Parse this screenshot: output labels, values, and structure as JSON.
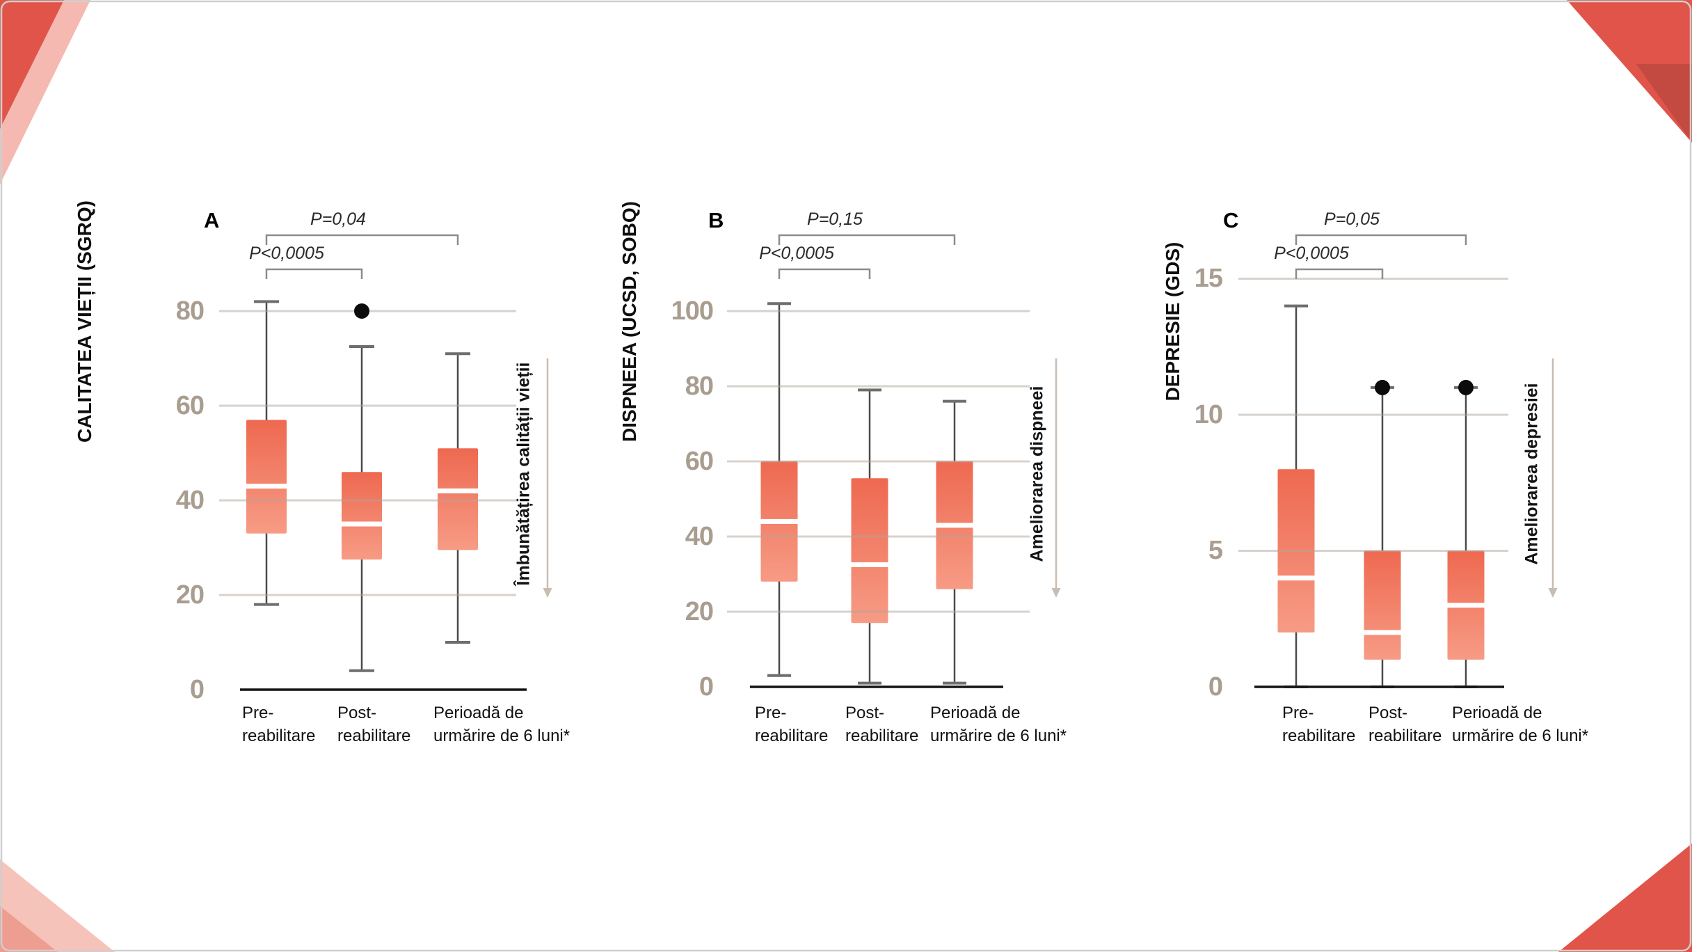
{
  "figure": {
    "language": "Romanian",
    "description_visible_text_only": true
  },
  "colors": {
    "box_fill_top": "#ee6950",
    "box_fill_bottom": "#f79b85",
    "median_line": "#ffffff",
    "whisker": "#4a4a4a",
    "whisker_cap": "#6e6e6e",
    "gridline": "#b0a69b",
    "axis_line": "#141414",
    "tick_label": "#a99d90",
    "bracket": "#8c8c8c",
    "arrow": "#c9bdb2",
    "outlier_dot": "#0b0b0b",
    "decoration_red": "#e1544a",
    "decoration_dark_red": "#c24a41",
    "decoration_pink": "#f5b9b1",
    "decoration_light_pink": "#f6c3bb",
    "decoration_mid_pink": "#ee9d91"
  },
  "chart_data": [
    {
      "type": "boxplot",
      "panel_label": "A",
      "y_title": "CALITATEA VIEȚII (SGRQ)",
      "arrow_label": "Îmbunătățirea calității vieții",
      "arrow_direction": "down",
      "y_ticks": [
        80,
        60,
        40,
        20,
        0
      ],
      "ylim": [
        0,
        88
      ],
      "grid": true,
      "categories": [
        [
          "Pre-",
          "reabilitare"
        ],
        [
          "Post-",
          "reabilitare"
        ],
        [
          "Perioadă de",
          "urmărire de 6 luni*"
        ]
      ],
      "boxes": [
        {
          "whisker_low": 18,
          "q1": 33,
          "median": 43,
          "q3": 57,
          "whisker_high": 82,
          "outliers": []
        },
        {
          "whisker_low": 4,
          "q1": 27.5,
          "median": 35,
          "q3": 46,
          "whisker_high": 72.5,
          "outliers": [
            80
          ]
        },
        {
          "whisker_low": 10,
          "q1": 29.5,
          "median": 42,
          "q3": 51,
          "whisker_high": 71,
          "outliers": []
        }
      ],
      "significance": [
        {
          "groups": [
            1,
            2
          ],
          "label": "P<0,0005"
        },
        {
          "groups": [
            1,
            3
          ],
          "label": "P=0,04"
        }
      ]
    },
    {
      "type": "boxplot",
      "panel_label": "B",
      "y_title": "DISPNEEA (UCSD, SOBQ)",
      "arrow_label": "Ameliorarea dispneei",
      "arrow_direction": "down",
      "y_ticks": [
        100,
        80,
        60,
        40,
        20,
        0
      ],
      "ylim": [
        0,
        110
      ],
      "grid": true,
      "categories": [
        [
          "Pre-",
          "reabilitare"
        ],
        [
          "Post-",
          "reabilitare"
        ],
        [
          "Perioadă de",
          "urmărire de 6 luni*"
        ]
      ],
      "boxes": [
        {
          "whisker_low": 3,
          "q1": 28,
          "median": 44,
          "q3": 60,
          "whisker_high": 102,
          "outliers": []
        },
        {
          "whisker_low": 1,
          "q1": 17,
          "median": 32.5,
          "q3": 55.5,
          "whisker_high": 79,
          "outliers": []
        },
        {
          "whisker_low": 1,
          "q1": 26,
          "median": 43,
          "q3": 60,
          "whisker_high": 76,
          "outliers": []
        }
      ],
      "significance": [
        {
          "groups": [
            1,
            2
          ],
          "label": "P<0,0005"
        },
        {
          "groups": [
            1,
            3
          ],
          "label": "P=0,15"
        }
      ]
    },
    {
      "type": "boxplot",
      "panel_label": "C",
      "y_title": "DEPRESIE (GDS)",
      "arrow_label": "Ameliorarea depresiei",
      "arrow_direction": "down",
      "y_ticks": [
        15,
        10,
        5,
        0
      ],
      "ylim": [
        0,
        15.5
      ],
      "grid": true,
      "categories": [
        [
          "Pre-",
          "reabilitare"
        ],
        [
          "Post-",
          "reabilitare"
        ],
        [
          "Perioadă de",
          "urmărire de 6 luni*"
        ]
      ],
      "boxes": [
        {
          "whisker_low": 0,
          "q1": 2,
          "median": 4,
          "q3": 8,
          "whisker_high": 14,
          "outliers": []
        },
        {
          "whisker_low": 0,
          "q1": 1,
          "median": 2,
          "q3": 5,
          "whisker_high": 11,
          "outliers": [
            11
          ]
        },
        {
          "whisker_low": 0,
          "q1": 1,
          "median": 3,
          "q3": 5,
          "whisker_high": 11,
          "outliers": [
            11
          ]
        }
      ],
      "significance": [
        {
          "groups": [
            1,
            2
          ],
          "label": "P<0,0005"
        },
        {
          "groups": [
            1,
            3
          ],
          "label": "P=0,05"
        }
      ]
    }
  ]
}
